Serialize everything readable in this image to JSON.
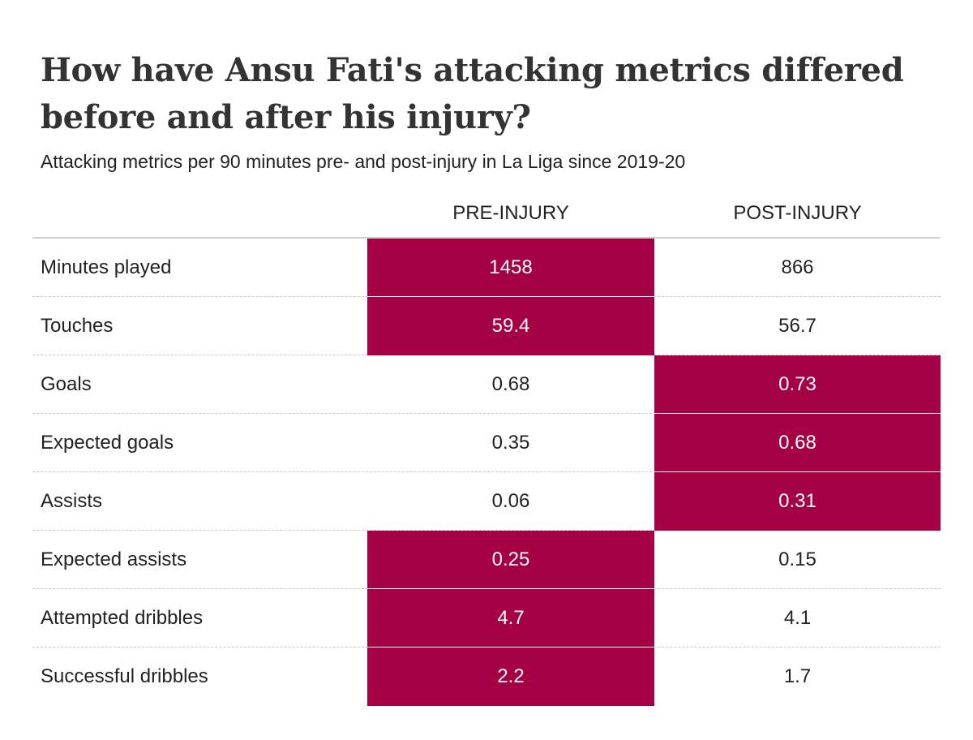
{
  "title": "How have Ansu Fati's attacking metrics differed before and after his injury?",
  "subtitle": "Attacking metrics per 90 minutes pre- and post-injury in La Liga since 2019-20",
  "colors": {
    "highlight": "#a50043",
    "highlight_text": "#ffffff",
    "text": "#222222",
    "rule": "#cfcfcf"
  },
  "chart_data": {
    "type": "table",
    "title": "How have Ansu Fati's attacking metrics differed before and after his injury?",
    "subtitle": "Attacking metrics per 90 minutes pre- and post-injury in La Liga since 2019-20",
    "columns": [
      "PRE-INJURY",
      "POST-INJURY"
    ],
    "rows": [
      {
        "metric": "Minutes played",
        "pre": "1458",
        "post": "866",
        "highlight": "pre"
      },
      {
        "metric": "Touches",
        "pre": "59.4",
        "post": "56.7",
        "highlight": "pre"
      },
      {
        "metric": "Goals",
        "pre": "0.68",
        "post": "0.73",
        "highlight": "post"
      },
      {
        "metric": "Expected goals",
        "pre": "0.35",
        "post": "0.68",
        "highlight": "post"
      },
      {
        "metric": "Assists",
        "pre": "0.06",
        "post": "0.31",
        "highlight": "post"
      },
      {
        "metric": "Expected assists",
        "pre": "0.25",
        "post": "0.15",
        "highlight": "pre"
      },
      {
        "metric": "Attempted dribbles",
        "pre": "4.7",
        "post": "4.1",
        "highlight": "pre"
      },
      {
        "metric": "Successful dribbles",
        "pre": "2.2",
        "post": "1.7",
        "highlight": "pre"
      }
    ]
  }
}
